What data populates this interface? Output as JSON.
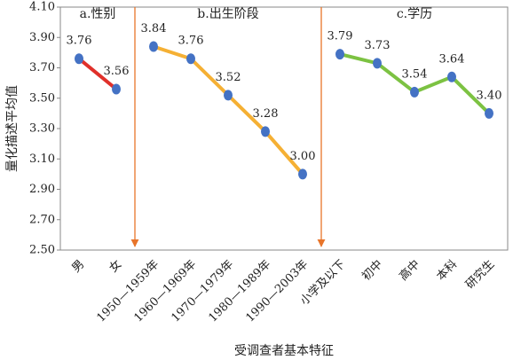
{
  "chart_data": {
    "type": "line",
    "x_label": "受调查者基本特征",
    "y_label": "量化描述平均值",
    "categories": [
      "男",
      "女",
      "1950—1959年",
      "1960—1969年",
      "1970—1979年",
      "1980—1989年",
      "1990—2003年",
      "小学及以下",
      "初中",
      "高中",
      "本科",
      "研究生"
    ],
    "series": [
      {
        "name": "a.性别",
        "color": "#e0302a",
        "values": [
          3.76,
          3.56,
          null,
          null,
          null,
          null,
          null,
          null,
          null,
          null,
          null,
          null
        ]
      },
      {
        "name": "b.出生阶段",
        "color": "#f5b034",
        "values": [
          null,
          null,
          3.84,
          3.76,
          3.52,
          3.28,
          3.0,
          null,
          null,
          null,
          null,
          null
        ],
        "value_labels": [
          null,
          null,
          "3.84",
          "3.76",
          "3.52",
          "3.28",
          "3.00",
          null,
          null,
          null,
          null,
          null
        ]
      },
      {
        "name": "c.学历",
        "color": "#7cc242",
        "values": [
          null,
          null,
          null,
          null,
          null,
          null,
          null,
          3.79,
          3.73,
          3.54,
          3.64,
          3.4
        ],
        "value_labels": [
          null,
          null,
          null,
          null,
          null,
          null,
          null,
          "3.79",
          "3.73",
          "3.54",
          "3.64",
          "3.40"
        ]
      }
    ],
    "marker_color": "#4472c4",
    "ylim": [
      2.5,
      4.1
    ],
    "yticks": [
      {
        "value": 2.5,
        "label": "2.50"
      },
      {
        "value": 2.7,
        "label": "2.70"
      },
      {
        "value": 2.9,
        "label": "2.90"
      },
      {
        "value": 3.1,
        "label": "3.10"
      },
      {
        "value": 3.3,
        "label": "3.30"
      },
      {
        "value": 3.5,
        "label": "3.50"
      },
      {
        "value": 3.7,
        "label": "3.70"
      },
      {
        "value": 3.9,
        "label": "3.90"
      },
      {
        "value": 4.1,
        "label": "4.10"
      }
    ],
    "grid": false
  }
}
